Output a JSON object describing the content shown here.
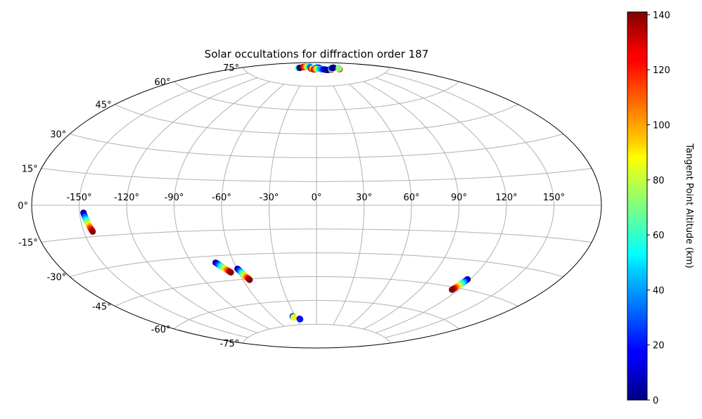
{
  "chart_data": {
    "type": "scatter",
    "projection": "aitoff",
    "title": "Solar occultations for diffraction order 187",
    "xlabel": "",
    "ylabel": "",
    "xticks": [
      "-150°",
      "-120°",
      "-90°",
      "-60°",
      "-30°",
      "0°",
      "30°",
      "60°",
      "90°",
      "120°",
      "150°"
    ],
    "yticks": [
      "-75°",
      "-60°",
      "-45°",
      "-30°",
      "-15°",
      "0°",
      "15°",
      "30°",
      "45°",
      "60°",
      "75°"
    ],
    "grid": true,
    "colorbar": {
      "label": "Tangent Point Altitude (km)",
      "colormap": "jet",
      "range": [
        0,
        141
      ],
      "ticks": [
        "0",
        "20",
        "40",
        "60",
        "80",
        "100",
        "120",
        "140"
      ]
    },
    "series": [
      {
        "lon": [
          -147.5,
          -146.8,
          -146.0,
          -145.2,
          -144.4
        ],
        "lat": [
          -3.5,
          -5.8,
          -8.1,
          -10.4,
          -12.6
        ],
        "altitude_km": [
          0,
          35,
          70,
          105,
          140
        ]
      },
      {
        "lon": [
          -73.0,
          -71.2,
          -69.4,
          -67.6,
          -65.8
        ],
        "lat": [
          -34.0,
          -35.6,
          -37.2,
          -38.8,
          -40.4
        ],
        "altitude_km": [
          0,
          35,
          70,
          105,
          140
        ]
      },
      {
        "lon": [
          -59.5,
          -58.3,
          -57.1,
          -55.9,
          -54.6
        ],
        "lat": [
          -38.5,
          -40.3,
          -42.1,
          -43.8,
          -45.6
        ],
        "altitude_km": [
          0,
          35,
          70,
          105,
          140
        ]
      },
      {
        "lon": [
          -33.5,
          -32.5
        ],
        "lat": [
          -69.5,
          -70.3
        ],
        "altitude_km": [
          0,
          90
        ]
      },
      {
        "lon": [
          -25.5,
          -25.0
        ],
        "lat": [
          -71.3,
          -71.6
        ],
        "altitude_km": [
          0,
          20
        ]
      },
      {
        "lon": [
          118.0,
          117.3,
          116.6,
          115.9,
          115.2
        ],
        "lat": [
          -40.0,
          -41.6,
          -43.2,
          -44.8,
          -46.4
        ],
        "altitude_km": [
          0,
          35,
          70,
          105,
          140
        ]
      },
      {
        "lon": [
          -100.0,
          -98.0,
          -96.5,
          -95.0
        ],
        "lat": [
          85.0,
          85.2,
          85.3,
          85.3
        ],
        "altitude_km": [
          80,
          55,
          30,
          0
        ]
      },
      {
        "lon": [
          -92.0,
          -84.0,
          -76.0,
          -68.0,
          -58.0,
          -50.0
        ],
        "lat": [
          86.0,
          86.4,
          86.7,
          86.9,
          87.0,
          87.0
        ],
        "altitude_km": [
          140,
          120,
          100,
          80,
          55,
          35
        ]
      },
      {
        "lon": [
          -34.0,
          -26.0,
          -18.0,
          -10.0,
          -2.0,
          6.0,
          14.0,
          20.0
        ],
        "lat": [
          86.0,
          86.2,
          86.5,
          86.7,
          86.8,
          86.8,
          86.7,
          86.6
        ],
        "altitude_km": [
          140,
          100,
          80,
          60,
          45,
          35,
          20,
          5
        ]
      },
      {
        "lon": [
          -15.0,
          -8.0,
          0.0,
          8.0,
          16.0,
          24.0,
          32.0,
          40.0,
          48.0,
          55.0
        ],
        "lat": [
          85.6,
          85.8,
          86.0,
          86.0,
          86.0,
          85.9,
          85.7,
          85.4,
          85.1,
          84.8
        ],
        "altitude_km": [
          140,
          120,
          100,
          80,
          60,
          45,
          35,
          20,
          10,
          0
        ]
      },
      {
        "lon": [
          70.0,
          76.0,
          82.0,
          88.0,
          94.0,
          99.0
        ],
        "lat": [
          84.6,
          85.0,
          85.3,
          85.4,
          85.4,
          85.3
        ],
        "altitude_km": [
          140,
          90,
          50,
          30,
          15,
          0
        ]
      },
      {
        "lon": [
          103.0,
          106.0,
          109.0,
          112.0
        ],
        "lat": [
          83.8,
          84.1,
          84.3,
          84.4
        ],
        "altitude_km": [
          130,
          110,
          90,
          70
        ]
      }
    ]
  }
}
